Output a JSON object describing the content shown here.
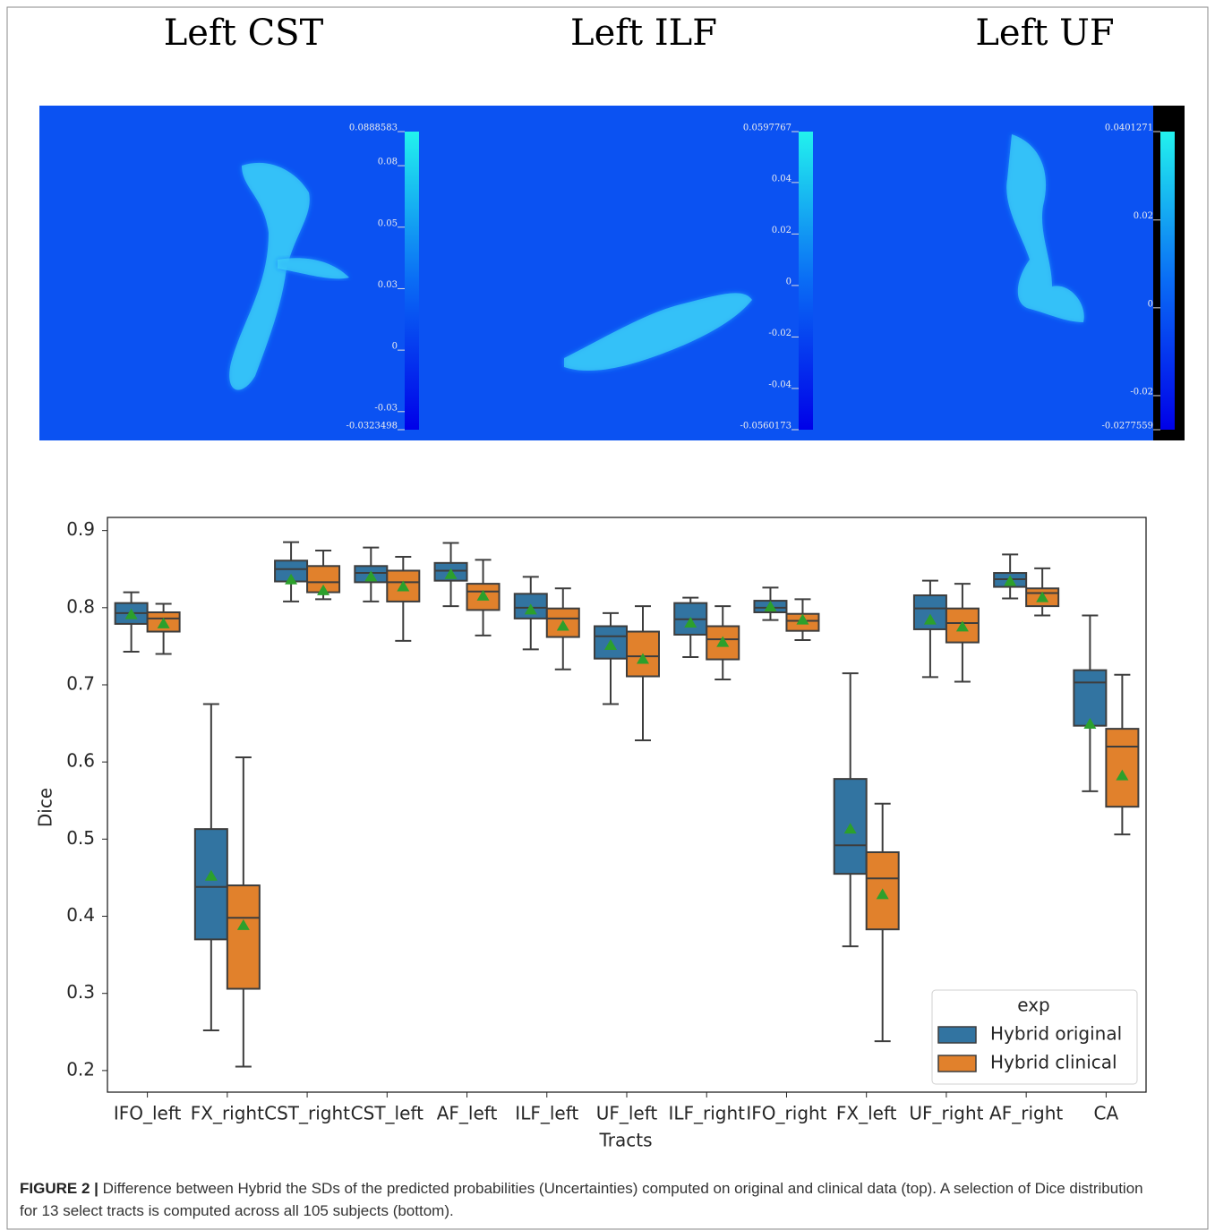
{
  "chart_data": [
    {
      "type": "heatmap",
      "title": "Left CST",
      "colorbar": {
        "lim": [
          -0.0323498,
          0.0888583
        ],
        "ticks": [
          0.0888583,
          {
            "value": 0.075,
            "label": "0.08"
          },
          0.05,
          {
            "value": 0.025,
            "label": "0.03"
          },
          0,
          {
            "value": -0.025,
            "label": "-0.03"
          },
          -0.0323498
        ]
      }
    },
    {
      "type": "heatmap",
      "title": "Left ILF",
      "colorbar": {
        "lim": [
          -0.0560173,
          0.0597767
        ],
        "ticks": [
          0.0597767,
          0.04,
          0.02,
          0,
          -0.02,
          -0.04,
          -0.0560173
        ]
      }
    },
    {
      "type": "heatmap",
      "title": "Left UF",
      "colorbar": {
        "lim": [
          -0.0277559,
          0.0401271
        ],
        "ticks": [
          0.0401271,
          0.02,
          0,
          -0.02,
          -0.0277559
        ]
      }
    },
    {
      "type": "box",
      "xlabel": "Tracts",
      "ylabel": "Dice",
      "categories": [
        "IFO_left",
        "FX_right",
        "CST_right",
        "CST_left",
        "AF_left",
        "ILF_left",
        "UF_left",
        "ILF_right",
        "IFO_right",
        "FX_left",
        "UF_right",
        "AF_right",
        "CA"
      ],
      "ylim": [
        0.172,
        0.917
      ],
      "yticks": [
        0.2,
        0.3,
        0.4,
        0.5,
        0.6,
        0.7,
        0.8,
        0.9
      ],
      "grid": false,
      "legend_title": "exp",
      "legend": "lower right",
      "mean_color": "#2ca02c",
      "series": [
        {
          "name": "Hybrid original",
          "color": "#3274a1",
          "whislo": [
            0.743,
            0.252,
            0.808,
            0.808,
            0.802,
            0.746,
            0.675,
            0.736,
            0.784,
            0.361,
            0.71,
            0.812,
            0.562
          ],
          "q1": [
            0.779,
            0.37,
            0.834,
            0.833,
            0.835,
            0.786,
            0.734,
            0.765,
            0.794,
            0.455,
            0.772,
            0.827,
            0.647
          ],
          "med": [
            0.793,
            0.438,
            0.85,
            0.845,
            0.848,
            0.8,
            0.763,
            0.785,
            0.8,
            0.492,
            0.799,
            0.837,
            0.703
          ],
          "q3": [
            0.806,
            0.513,
            0.861,
            0.854,
            0.858,
            0.818,
            0.776,
            0.806,
            0.809,
            0.578,
            0.816,
            0.845,
            0.719
          ],
          "whishi": [
            0.82,
            0.675,
            0.885,
            0.878,
            0.884,
            0.84,
            0.793,
            0.813,
            0.826,
            0.715,
            0.835,
            0.869,
            0.79
          ],
          "mean": [
            0.791,
            0.452,
            0.836,
            0.84,
            0.843,
            0.797,
            0.751,
            0.78,
            0.801,
            0.513,
            0.784,
            0.834,
            0.649
          ]
        },
        {
          "name": "Hybrid clinical",
          "color": "#e1812c",
          "whislo": [
            0.74,
            0.205,
            0.811,
            0.757,
            0.764,
            0.72,
            0.628,
            0.707,
            0.758,
            0.238,
            0.704,
            0.79,
            0.506
          ],
          "q1": [
            0.769,
            0.306,
            0.82,
            0.808,
            0.797,
            0.762,
            0.711,
            0.733,
            0.77,
            0.383,
            0.755,
            0.802,
            0.542
          ],
          "med": [
            0.786,
            0.398,
            0.833,
            0.833,
            0.821,
            0.786,
            0.737,
            0.759,
            0.783,
            0.449,
            0.78,
            0.819,
            0.62
          ],
          "q3": [
            0.794,
            0.44,
            0.854,
            0.848,
            0.831,
            0.799,
            0.769,
            0.776,
            0.792,
            0.483,
            0.799,
            0.825,
            0.643
          ],
          "whishi": [
            0.805,
            0.606,
            0.874,
            0.866,
            0.862,
            0.825,
            0.802,
            0.802,
            0.811,
            0.546,
            0.831,
            0.851,
            0.713
          ],
          "mean": [
            0.779,
            0.388,
            0.822,
            0.827,
            0.815,
            0.776,
            0.733,
            0.755,
            0.784,
            0.428,
            0.775,
            0.813,
            0.582
          ]
        }
      ]
    }
  ],
  "caption": {
    "label": "FIGURE 2 |",
    "text": "Difference between Hybrid the SDs of the predicted probabilities (Uncertainties) computed on original and clinical data (top). A selection of Dice distribution for 13 select tracts is computed across all 105 subjects (bottom)."
  }
}
